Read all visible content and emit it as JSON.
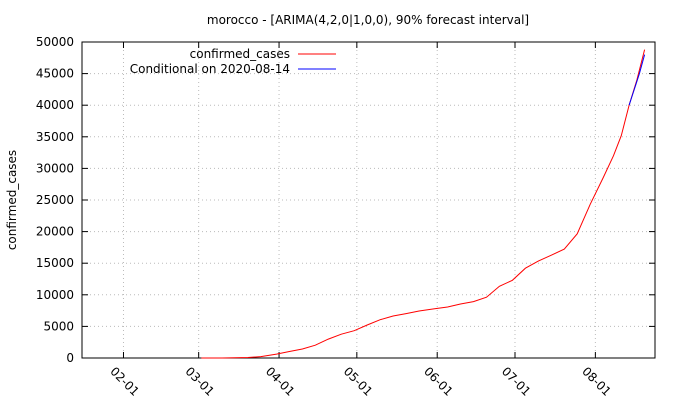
{
  "chart_data": {
    "type": "line",
    "title": "morocco -  [ARIMA(4,2,0|1,0,0), 90% forecast interval]",
    "xlabel": "",
    "ylabel": "confirmed_cases",
    "x_axis_type": "date",
    "xlim": [
      "2020-01-16",
      "2020-08-24"
    ],
    "ylim": [
      0,
      50000
    ],
    "y_ticks": [
      0,
      5000,
      10000,
      15000,
      20000,
      25000,
      30000,
      35000,
      40000,
      45000,
      50000
    ],
    "x_ticks": [
      {
        "date": "2020-02-01",
        "label": "02-01"
      },
      {
        "date": "2020-03-01",
        "label": "03-01"
      },
      {
        "date": "2020-04-01",
        "label": "04-01"
      },
      {
        "date": "2020-05-01",
        "label": "05-01"
      },
      {
        "date": "2020-06-01",
        "label": "06-01"
      },
      {
        "date": "2020-07-01",
        "label": "07-01"
      },
      {
        "date": "2020-08-01",
        "label": "08-01"
      }
    ],
    "grid": true,
    "legend_position": "top-left",
    "series": [
      {
        "name": "confirmed_cases",
        "color": "#ff0000",
        "points": [
          [
            "2020-03-02",
            1
          ],
          [
            "2020-03-10",
            2
          ],
          [
            "2020-03-15",
            37
          ],
          [
            "2020-03-20",
            79
          ],
          [
            "2020-03-25",
            225
          ],
          [
            "2020-03-31",
            617
          ],
          [
            "2020-04-05",
            1021
          ],
          [
            "2020-04-10",
            1431
          ],
          [
            "2020-04-15",
            2024
          ],
          [
            "2020-04-20",
            2990
          ],
          [
            "2020-04-25",
            3758
          ],
          [
            "2020-04-30",
            4321
          ],
          [
            "2020-05-05",
            5219
          ],
          [
            "2020-05-10",
            6063
          ],
          [
            "2020-05-15",
            6652
          ],
          [
            "2020-05-20",
            7023
          ],
          [
            "2020-05-25",
            7433
          ],
          [
            "2020-05-31",
            7807
          ],
          [
            "2020-06-05",
            8071
          ],
          [
            "2020-06-10",
            8537
          ],
          [
            "2020-06-15",
            8931
          ],
          [
            "2020-06-20",
            9613
          ],
          [
            "2020-06-25",
            11338
          ],
          [
            "2020-06-30",
            12290
          ],
          [
            "2020-07-05",
            14215
          ],
          [
            "2020-07-10",
            15328
          ],
          [
            "2020-07-15",
            16262
          ],
          [
            "2020-07-20",
            17236
          ],
          [
            "2020-07-25",
            19645
          ],
          [
            "2020-07-30",
            24322
          ],
          [
            "2020-08-04",
            28500
          ],
          [
            "2020-08-08",
            32007
          ],
          [
            "2020-08-11",
            35195
          ],
          [
            "2020-08-14",
            40000
          ],
          [
            "2020-08-17",
            44000
          ],
          [
            "2020-08-20",
            48800
          ]
        ]
      },
      {
        "name": "Conditional on 2020-08-14",
        "color": "#0000ff",
        "points": [
          [
            "2020-08-14",
            40000
          ],
          [
            "2020-08-16",
            42500
          ],
          [
            "2020-08-18",
            45000
          ],
          [
            "2020-08-20",
            48000
          ]
        ]
      }
    ]
  }
}
